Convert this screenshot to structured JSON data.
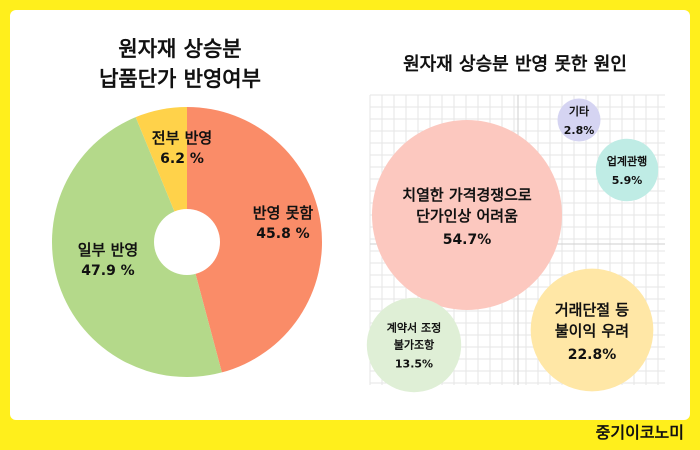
{
  "left_title": [
    "원자재 상승분",
    "납품단가 반영여부"
  ],
  "right_title": "원자재 상승분 반영 못한 원인",
  "brand": "중기이코노미",
  "chart_data": [
    {
      "type": "pie",
      "title": "원자재 상승분 납품단가 반영여부",
      "categories": [
        "반영 못함",
        "일부 반영",
        "전부 반영"
      ],
      "values": [
        45.8,
        47.9,
        6.2
      ],
      "value_labels": [
        "45.8 %",
        "47.9 %",
        "6.2 %"
      ],
      "colors": [
        "#fa8c68",
        "#b4d98a",
        "#ffd24a"
      ]
    },
    {
      "type": "bubble",
      "title": "원자재 상승분 반영 못한 원인",
      "categories": [
        "치열한 가격경쟁으로 단가인상 어려움",
        "거래단절 등 불이익 우려",
        "계약서 조정 불가조항",
        "업계관행",
        "기타"
      ],
      "category_lines": [
        [
          "치열한 가격경쟁으로",
          "단가인상 어려움"
        ],
        [
          "거래단절 등",
          "불이익 우려"
        ],
        [
          "계약서 조정",
          "불가조항"
        ],
        [
          "업계관행"
        ],
        [
          "기타"
        ]
      ],
      "values": [
        54.7,
        22.8,
        13.5,
        5.9,
        2.8
      ],
      "value_labels": [
        "54.7%",
        "22.8%",
        "13.5%",
        "5.9%",
        "2.8%"
      ],
      "colors": [
        "#fcc8bf",
        "#ffe7a6",
        "#dfefd6",
        "#bfece5",
        "#d5d4f2"
      ],
      "grid": true
    }
  ]
}
